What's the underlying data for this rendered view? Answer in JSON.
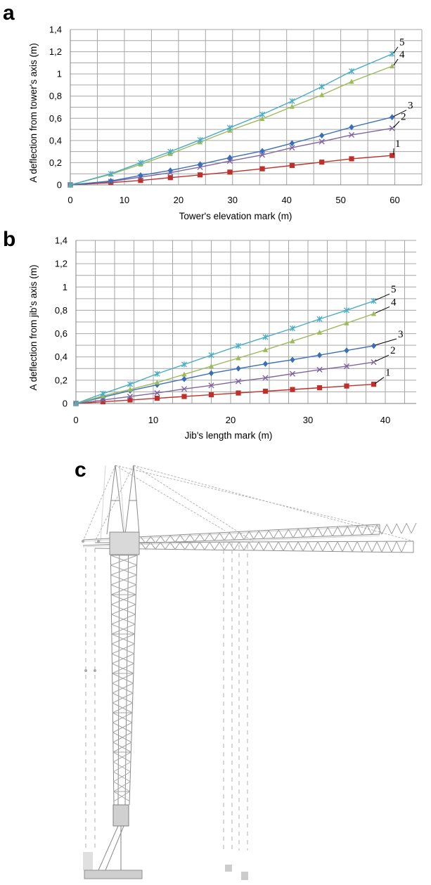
{
  "chart_data": [
    {
      "panel": "a",
      "type": "line",
      "xlabel": "Tower's elevation mark (m)",
      "ylabel": "A deflection from tower's axis (m)",
      "xlim": [
        0,
        65
      ],
      "ylim": [
        0,
        1.4
      ],
      "xticks": [
        "0",
        "10",
        "20",
        "30",
        "40",
        "50",
        "60"
      ],
      "yticks": [
        "0",
        "0,2",
        "0,4",
        "0,6",
        "0,8",
        "1",
        "1,2",
        "1,4"
      ],
      "grid": true,
      "x": [
        0,
        7.5,
        13,
        18.5,
        24,
        29.5,
        35.5,
        41,
        46.5,
        52,
        59.5
      ],
      "series": [
        {
          "name": "1",
          "color": "#c0302b",
          "marker": "square",
          "values": [
            0,
            0.02,
            0.04,
            0.065,
            0.09,
            0.115,
            0.145,
            0.175,
            0.205,
            0.235,
            0.265
          ]
        },
        {
          "name": "2",
          "color": "#8064a2",
          "marker": "x",
          "values": [
            0,
            0.03,
            0.07,
            0.11,
            0.16,
            0.215,
            0.27,
            0.335,
            0.39,
            0.45,
            0.51
          ]
        },
        {
          "name": "3",
          "color": "#3a6fb7",
          "marker": "diamond",
          "values": [
            0,
            0.035,
            0.085,
            0.13,
            0.185,
            0.245,
            0.305,
            0.375,
            0.445,
            0.52,
            0.61
          ]
        },
        {
          "name": "4",
          "color": "#9bbb59",
          "marker": "triangle",
          "values": [
            0,
            0.095,
            0.185,
            0.28,
            0.385,
            0.49,
            0.595,
            0.705,
            0.81,
            0.93,
            1.07
          ]
        },
        {
          "name": "5",
          "color": "#4bacc6",
          "marker": "star",
          "values": [
            0,
            0.1,
            0.2,
            0.3,
            0.405,
            0.515,
            0.635,
            0.755,
            0.885,
            1.025,
            1.18
          ]
        }
      ]
    },
    {
      "panel": "b",
      "type": "line",
      "xlabel": "Jib's length mark (m)",
      "ylabel": "A deflection from jib's axis (m)",
      "xlim": [
        0,
        44
      ],
      "ylim": [
        0,
        1.4
      ],
      "xticks": [
        "0",
        "10",
        "20",
        "30",
        "40"
      ],
      "yticks": [
        "0",
        "0,2",
        "0,4",
        "0,6",
        "0,8",
        "1",
        "1,2",
        "1,4"
      ],
      "grid": true,
      "x": [
        0,
        3.5,
        7,
        10.5,
        14,
        17.5,
        21,
        24.5,
        28,
        31.5,
        35,
        38.5
      ],
      "series": [
        {
          "name": "1",
          "color": "#c0302b",
          "marker": "square",
          "values": [
            0,
            0.015,
            0.03,
            0.045,
            0.06,
            0.075,
            0.09,
            0.105,
            0.12,
            0.135,
            0.15,
            0.165
          ]
        },
        {
          "name": "2",
          "color": "#8064a2",
          "marker": "x",
          "values": [
            0,
            0.03,
            0.06,
            0.09,
            0.125,
            0.155,
            0.19,
            0.22,
            0.255,
            0.29,
            0.32,
            0.355
          ]
        },
        {
          "name": "3",
          "color": "#3a6fb7",
          "marker": "diamond",
          "values": [
            0,
            0.055,
            0.11,
            0.16,
            0.21,
            0.26,
            0.3,
            0.34,
            0.375,
            0.415,
            0.455,
            0.495
          ]
        },
        {
          "name": "4",
          "color": "#9bbb59",
          "marker": "triangle",
          "values": [
            0,
            0.065,
            0.12,
            0.18,
            0.25,
            0.32,
            0.39,
            0.46,
            0.535,
            0.61,
            0.69,
            0.77
          ]
        },
        {
          "name": "5",
          "color": "#4bacc6",
          "marker": "star",
          "values": [
            0,
            0.085,
            0.165,
            0.255,
            0.335,
            0.415,
            0.495,
            0.57,
            0.645,
            0.725,
            0.8,
            0.88
          ]
        }
      ]
    }
  ],
  "panels": {
    "a": "a",
    "b": "b",
    "c": "c"
  }
}
